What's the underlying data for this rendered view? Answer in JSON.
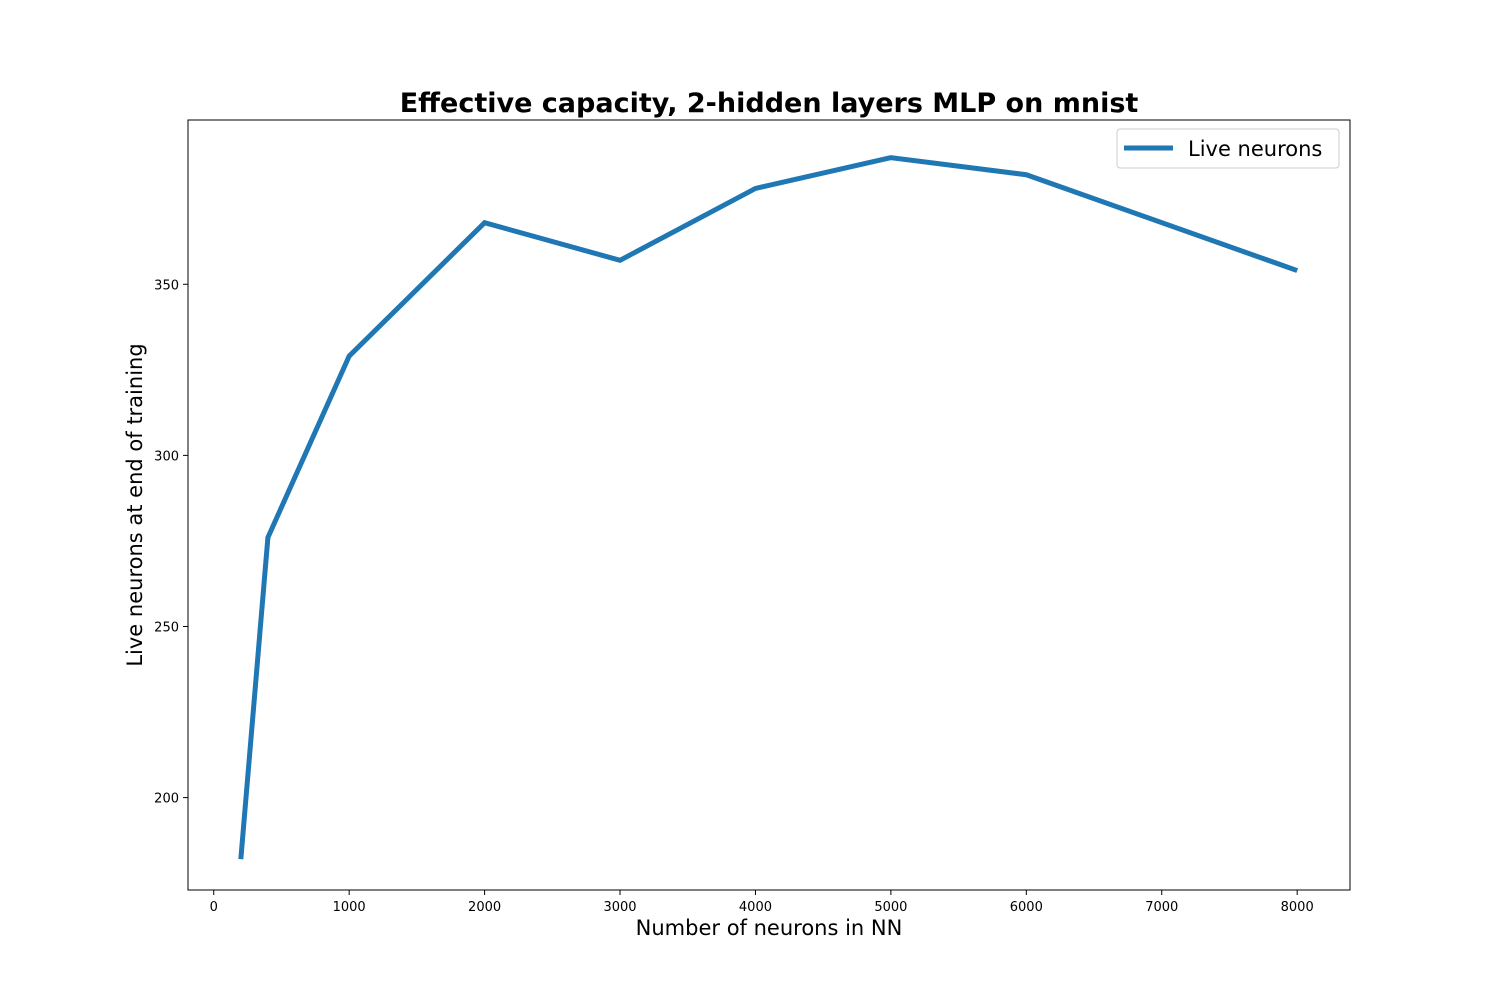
{
  "chart_data": {
    "type": "line",
    "title": "Effective capacity, 2-hidden layers MLP on mnist",
    "xlabel": "Number of neurons in NN",
    "ylabel": "Live neurons at end of training",
    "xlim": [
      -190,
      8390
    ],
    "ylim": [
      173,
      398
    ],
    "xticks": [
      0,
      1000,
      2000,
      3000,
      4000,
      5000,
      6000,
      7000,
      8000
    ],
    "yticks": [
      200,
      250,
      300,
      350
    ],
    "grid": false,
    "legend_position": "top-right",
    "series": [
      {
        "name": "Live neurons",
        "color": "#1f77b4",
        "x": [
          200,
          400,
          1000,
          2000,
          3000,
          4000,
          5000,
          6000,
          8000
        ],
        "y": [
          182,
          276,
          329,
          368,
          357,
          378,
          387,
          382,
          354
        ]
      }
    ]
  }
}
